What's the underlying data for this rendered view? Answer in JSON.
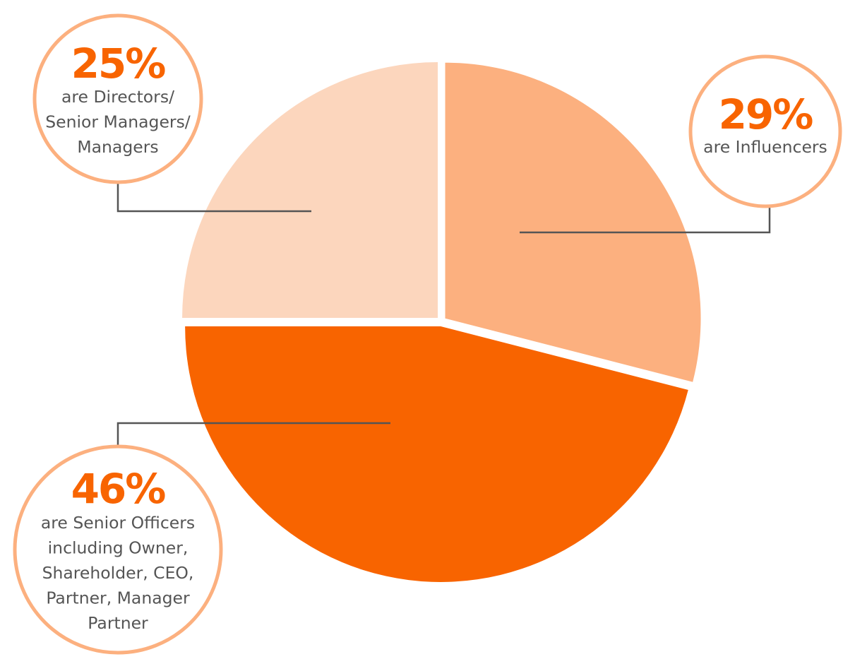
{
  "chart_data": {
    "type": "pie",
    "slices": [
      {
        "value": 29,
        "label": "29%",
        "description": [
          "are Influencers"
        ],
        "color": "#FCB07F"
      },
      {
        "value": 46,
        "label": "46%",
        "description": [
          "are Senior Officers",
          "including Owner,",
          "Shareholder, CEO,",
          "Partner, Manager",
          "Partner"
        ],
        "color": "#F86400"
      },
      {
        "value": 25,
        "label": "25%",
        "description": [
          "are Directors/",
          "Senior Managers/",
          "Managers"
        ],
        "color": "#FCD6BD"
      }
    ],
    "start_angle_deg": 0,
    "direction": "clockwise"
  },
  "colors": {
    "accent_text": "#F86400",
    "body_text": "#555555",
    "callout_ring": "#FCB07F",
    "leader_line": "#555555",
    "background": "#FFFFFF"
  }
}
